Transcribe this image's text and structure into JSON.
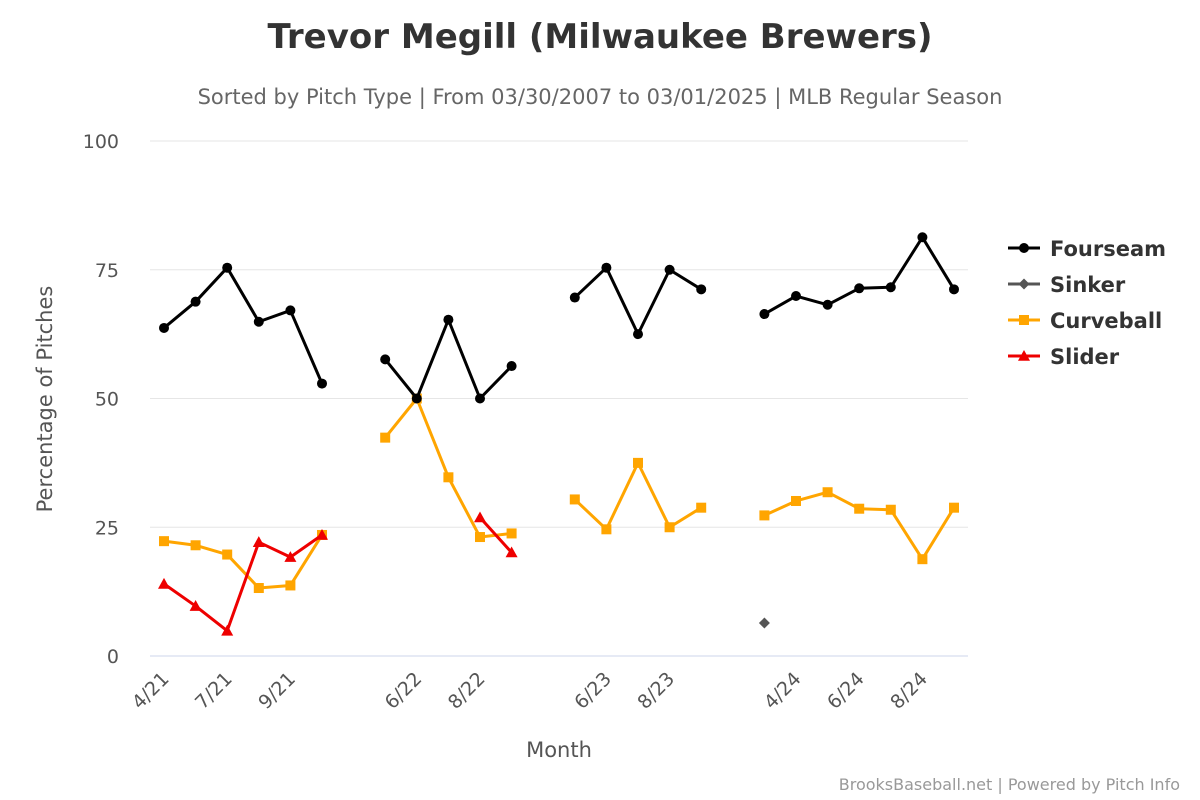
{
  "chart_data": {
    "type": "line",
    "title": "Trevor Megill (Milwaukee Brewers)",
    "subtitle": "Sorted by Pitch Type | From 03/30/2007 to 03/01/2025 | MLB Regular Season",
    "xlabel": "Month",
    "ylabel": "Percentage of Pitches",
    "ylim": [
      0,
      100
    ],
    "yticks": [
      0,
      25,
      50,
      75,
      100
    ],
    "grid": true,
    "legend_position": "right",
    "credits": "BrooksBaseball.net | Powered by Pitch Info",
    "categories": [
      "4/21",
      "5/21",
      "7/21",
      "8/21",
      "9/21",
      "10/21",
      "5/22",
      "6/22",
      "7/22",
      "8/22",
      "9/22",
      "5/23",
      "6/23",
      "7/23",
      "8/23",
      "9/23",
      "3/24",
      "4/24",
      "5/24",
      "6/24",
      "7/24",
      "8/24",
      "9/24"
    ],
    "category_slots": [
      0,
      1,
      2,
      3,
      4,
      5,
      7,
      8,
      9,
      10,
      11,
      13,
      14,
      15,
      16,
      17,
      19,
      20,
      21,
      22,
      23,
      24,
      25
    ],
    "tick_labels": [
      {
        "label": "4/21",
        "index": 0
      },
      {
        "label": "7/21",
        "index": 2
      },
      {
        "label": "9/21",
        "index": 4
      },
      {
        "label": "6/22",
        "index": 7
      },
      {
        "label": "8/22",
        "index": 9
      },
      {
        "label": "6/23",
        "index": 12
      },
      {
        "label": "8/23",
        "index": 14
      },
      {
        "label": "4/24",
        "index": 17
      },
      {
        "label": "6/24",
        "index": 19
      },
      {
        "label": "8/24",
        "index": 21
      }
    ],
    "series": [
      {
        "name": "Fourseam",
        "color": "#000000",
        "marker": "circle",
        "values": [
          63.7,
          68.8,
          75.4,
          64.9,
          67.1,
          52.9,
          57.6,
          50.0,
          65.3,
          50.0,
          56.3,
          69.6,
          75.4,
          62.5,
          75.0,
          71.2,
          66.4,
          69.9,
          68.2,
          71.4,
          71.6,
          81.3,
          71.2
        ]
      },
      {
        "name": "Sinker",
        "color": "#555555",
        "marker": "diamond",
        "values": [
          null,
          null,
          null,
          null,
          null,
          null,
          null,
          null,
          null,
          null,
          null,
          null,
          null,
          null,
          null,
          null,
          6.4,
          null,
          null,
          null,
          null,
          null,
          null
        ]
      },
      {
        "name": "Curveball",
        "color": "#ffa500",
        "marker": "square",
        "values": [
          22.3,
          21.5,
          19.7,
          13.2,
          13.7,
          23.5,
          42.4,
          50.0,
          34.7,
          23.1,
          23.8,
          30.4,
          24.6,
          37.5,
          25.0,
          28.8,
          27.3,
          30.1,
          31.8,
          28.6,
          28.4,
          18.8,
          28.8
        ]
      },
      {
        "name": "Slider",
        "color": "#ee0000",
        "marker": "triangle",
        "values": [
          14.0,
          9.7,
          4.9,
          22.1,
          19.2,
          23.5,
          null,
          null,
          null,
          26.9,
          20.1,
          null,
          null,
          null,
          null,
          null,
          null,
          null,
          null,
          null,
          null,
          null,
          null
        ]
      }
    ]
  }
}
